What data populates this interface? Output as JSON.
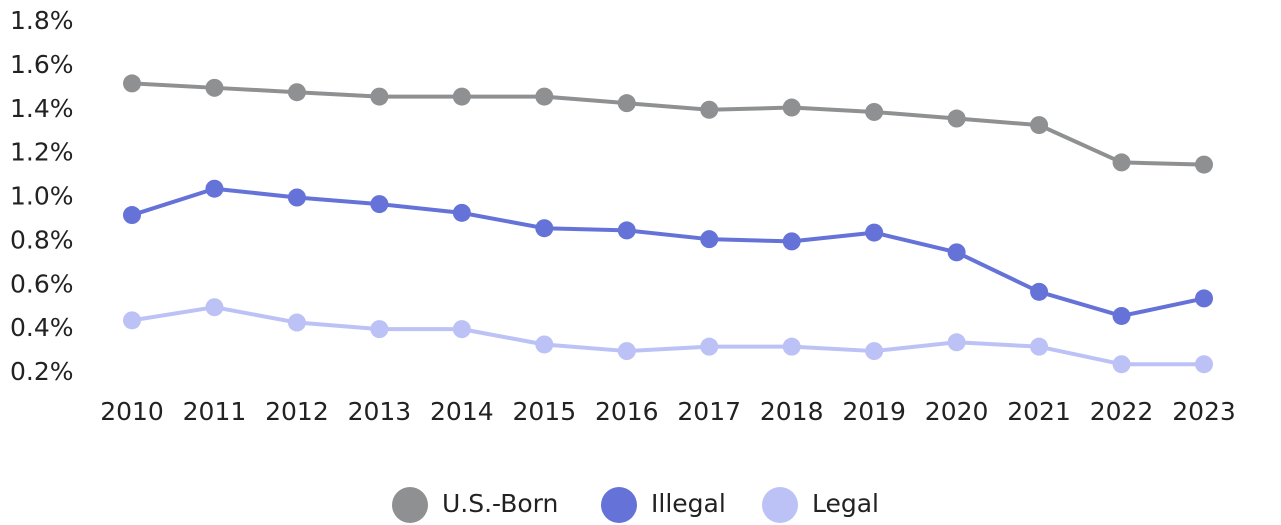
{
  "chart_data": {
    "type": "line",
    "categories": [
      "2010",
      "2011",
      "2012",
      "2013",
      "2014",
      "2015",
      "2016",
      "2017",
      "2018",
      "2019",
      "2020",
      "2021",
      "2022",
      "2023"
    ],
    "series": [
      {
        "name": "U.S.-Born",
        "color": "#8e9092",
        "values": [
          1.52,
          1.5,
          1.48,
          1.46,
          1.46,
          1.46,
          1.43,
          1.4,
          1.41,
          1.39,
          1.36,
          1.33,
          1.16,
          1.15
        ]
      },
      {
        "name": "Illegal",
        "color": "#6572d8",
        "values": [
          0.92,
          1.04,
          1.0,
          0.97,
          0.93,
          0.86,
          0.85,
          0.81,
          0.8,
          0.84,
          0.75,
          0.57,
          0.46,
          0.54
        ]
      },
      {
        "name": "Legal",
        "color": "#bcc2f5",
        "values": [
          0.44,
          0.5,
          0.43,
          0.4,
          0.4,
          0.33,
          0.3,
          0.32,
          0.32,
          0.3,
          0.34,
          0.32,
          0.24,
          0.24
        ]
      }
    ],
    "ylim": [
      0.2,
      1.8
    ],
    "yticks": [
      {
        "value": 0.2,
        "label": "0.2%"
      },
      {
        "value": 0.4,
        "label": "0.4%"
      },
      {
        "value": 0.6,
        "label": "0.6%"
      },
      {
        "value": 0.8,
        "label": "0.8%"
      },
      {
        "value": 1.0,
        "label": "1.0%"
      },
      {
        "value": 1.2,
        "label": "1.2%"
      },
      {
        "value": 1.4,
        "label": "1.4%"
      },
      {
        "value": 1.6,
        "label": "1.6%"
      },
      {
        "value": 1.8,
        "label": "1.8%"
      }
    ],
    "grid": false,
    "legend": "bottom"
  }
}
